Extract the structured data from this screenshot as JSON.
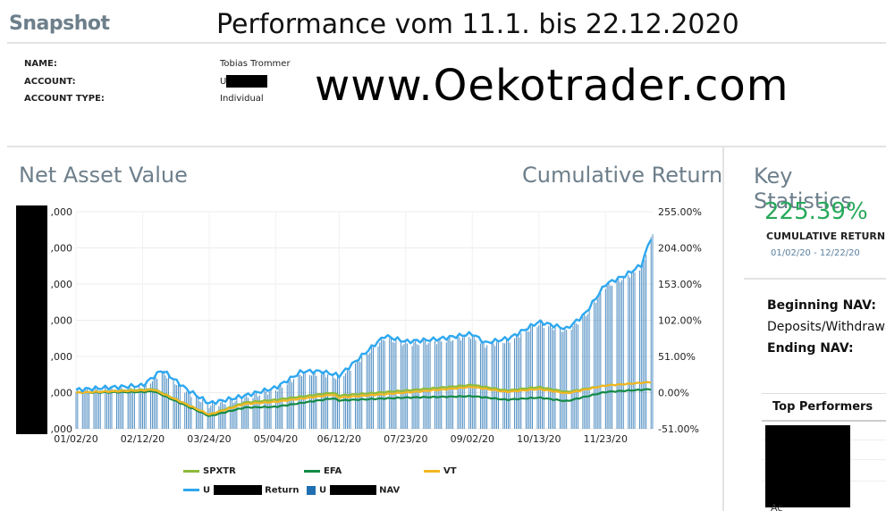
{
  "header": {
    "snapshot_title": "Snapshot",
    "overlay_title": "Performance vom 11.1. bis 22.12.2020",
    "site_url": "www.Oekotrader.com"
  },
  "account": {
    "name_label": "NAME:",
    "name_value": "Tobias Trommer",
    "account_label": "ACCOUNT:",
    "account_value": "U",
    "type_label": "ACCOUNT TYPE:",
    "type_value": "Individual"
  },
  "sections": {
    "nav_title": "Net Asset Value",
    "return_title": "Cumulative Return",
    "stats_title": "Key Statistics"
  },
  "key_statistics": {
    "cumulative_return_value": "225.39%",
    "cumulative_return_label": "CUMULATIVE RETURN",
    "date_range": "01/02/20 - 12/22/20",
    "beginning_nav_label": "Beginning NAV:",
    "deposits_label": "Deposits/Withdrawa",
    "ending_nav_label": "Ending NAV:",
    "top_performers_label": "Top Performers",
    "top_performers_partial": "Ac"
  },
  "legend": {
    "spxtr": "SPXTR",
    "efa": "EFA",
    "vt": "VT",
    "return_prefix": "U",
    "return_suffix": "Return",
    "nav_prefix": "U",
    "nav_suffix": "NAV"
  },
  "colors": {
    "spxtr": "#8dbb3c",
    "efa": "#138a45",
    "vt": "#f2b622",
    "account_return": "#2ea8f0",
    "account_nav": "#1f6fb2",
    "positive": "#27a95a"
  },
  "chart_data": {
    "type": "line",
    "title": "",
    "x_tick_labels": [
      "01/02/20",
      "02/12/20",
      "03/24/20",
      "05/04/20",
      "06/12/20",
      "07/23/20",
      "09/02/20",
      "10/13/20",
      "11/23/20"
    ],
    "left_axis_tick_labels": [
      ",000",
      ",000",
      ",000",
      ",000",
      ",000",
      ",000",
      ",000"
    ],
    "right_axis_tick_labels": [
      "255.00%",
      "204.00%",
      "153.00%",
      "102.00%",
      "51.00%",
      "0.00%",
      "-51.00%"
    ],
    "y2lim": [
      -51,
      255
    ],
    "series": [
      {
        "name": "SPXTR",
        "type": "line",
        "x": [
          "01/02/20",
          "02/12/20",
          "02/19/20",
          "03/24/20",
          "04/15/20",
          "05/04/20",
          "06/08/20",
          "06/12/20",
          "07/23/20",
          "09/02/20",
          "09/23/20",
          "10/13/20",
          "10/30/20",
          "11/23/20",
          "12/22/20"
        ],
        "values": [
          0,
          4,
          5,
          -31,
          -14,
          -10,
          0,
          -4,
          3,
          11,
          3,
          8,
          1,
          10,
          15
        ]
      },
      {
        "name": "EFA",
        "type": "line",
        "x": [
          "01/02/20",
          "02/12/20",
          "02/19/20",
          "03/24/20",
          "04/15/20",
          "05/04/20",
          "06/08/20",
          "06/12/20",
          "07/23/20",
          "09/02/20",
          "09/23/20",
          "10/13/20",
          "10/30/20",
          "11/23/20",
          "12/22/20"
        ],
        "values": [
          0,
          1,
          2,
          -33,
          -21,
          -20,
          -8,
          -11,
          -7,
          -5,
          -10,
          -7,
          -12,
          1,
          5
        ]
      },
      {
        "name": "VT",
        "type": "line",
        "x": [
          "01/02/20",
          "02/12/20",
          "02/19/20",
          "03/24/20",
          "04/15/20",
          "05/04/20",
          "06/08/20",
          "06/12/20",
          "07/23/20",
          "09/02/20",
          "09/23/20",
          "10/13/20",
          "10/30/20",
          "11/23/20",
          "12/22/20"
        ],
        "values": [
          0,
          3,
          4,
          -31,
          -16,
          -13,
          -3,
          -7,
          0,
          8,
          1,
          5,
          -1,
          10,
          15
        ]
      },
      {
        "name": "U Return",
        "type": "line",
        "x": [
          "01/02/20",
          "01/20/20",
          "02/12/20",
          "02/24/20",
          "03/10/20",
          "03/24/20",
          "04/10/20",
          "05/04/20",
          "05/20/20",
          "06/01/20",
          "06/12/20",
          "06/25/20",
          "07/10/20",
          "07/23/20",
          "08/10/20",
          "09/02/20",
          "09/10/20",
          "09/25/20",
          "10/13/20",
          "10/30/20",
          "11/10/20",
          "11/23/20",
          "12/05/20",
          "12/15/20",
          "12/22/20"
        ],
        "values": [
          4,
          7,
          10,
          32,
          5,
          -15,
          -7,
          7,
          30,
          30,
          24,
          50,
          80,
          72,
          75,
          83,
          70,
          77,
          100,
          90,
          110,
          153,
          165,
          180,
          225
        ]
      },
      {
        "name": "U NAV",
        "type": "bar",
        "note": "daily bars tracking the U Return line"
      }
    ]
  }
}
